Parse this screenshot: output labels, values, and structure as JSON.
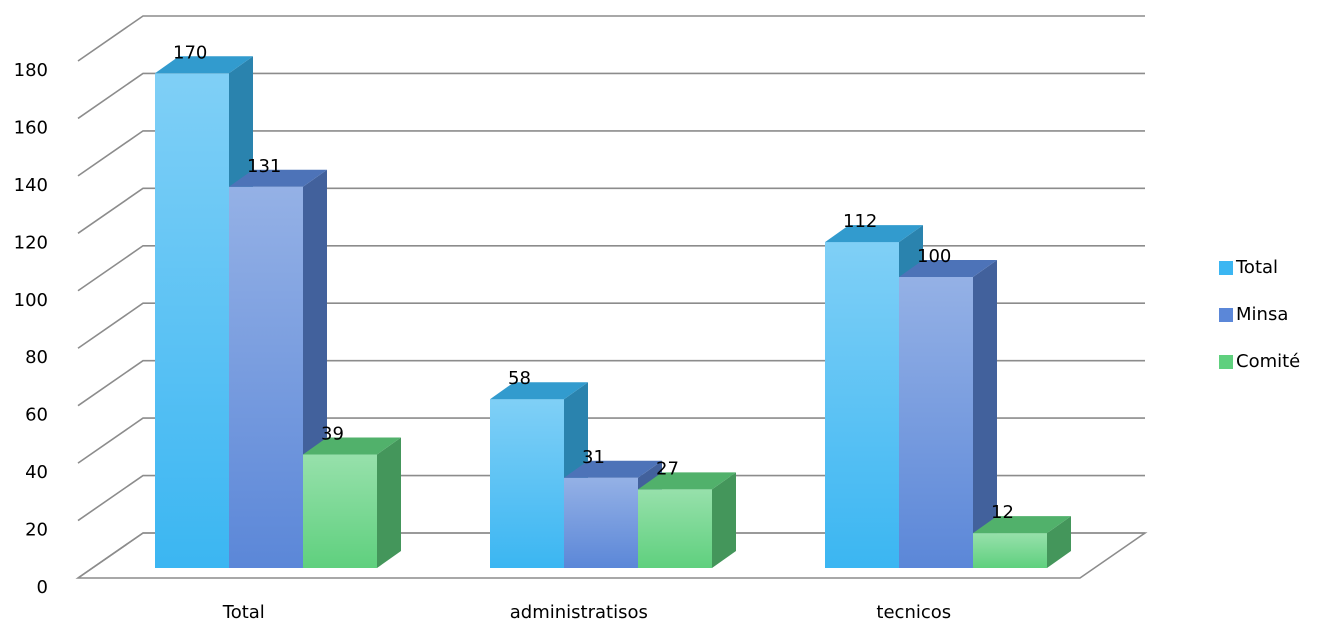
{
  "chart_data": {
    "type": "bar3d",
    "categories": [
      "Total",
      "administratisos",
      "tecnicos"
    ],
    "series": [
      {
        "name": "Total",
        "color": "#3bb6f2",
        "values": [
          170,
          58,
          112
        ]
      },
      {
        "name": "Minsa",
        "color": "#5b87d8",
        "values": [
          131,
          31,
          100
        ]
      },
      {
        "name": "Comité",
        "color": "#5fd07e",
        "values": [
          39,
          27,
          12
        ]
      }
    ],
    "ylim": [
      0,
      180
    ],
    "yticks": [
      0,
      20,
      40,
      60,
      80,
      100,
      120,
      140,
      160,
      180
    ],
    "grid": true,
    "legend": "right"
  }
}
